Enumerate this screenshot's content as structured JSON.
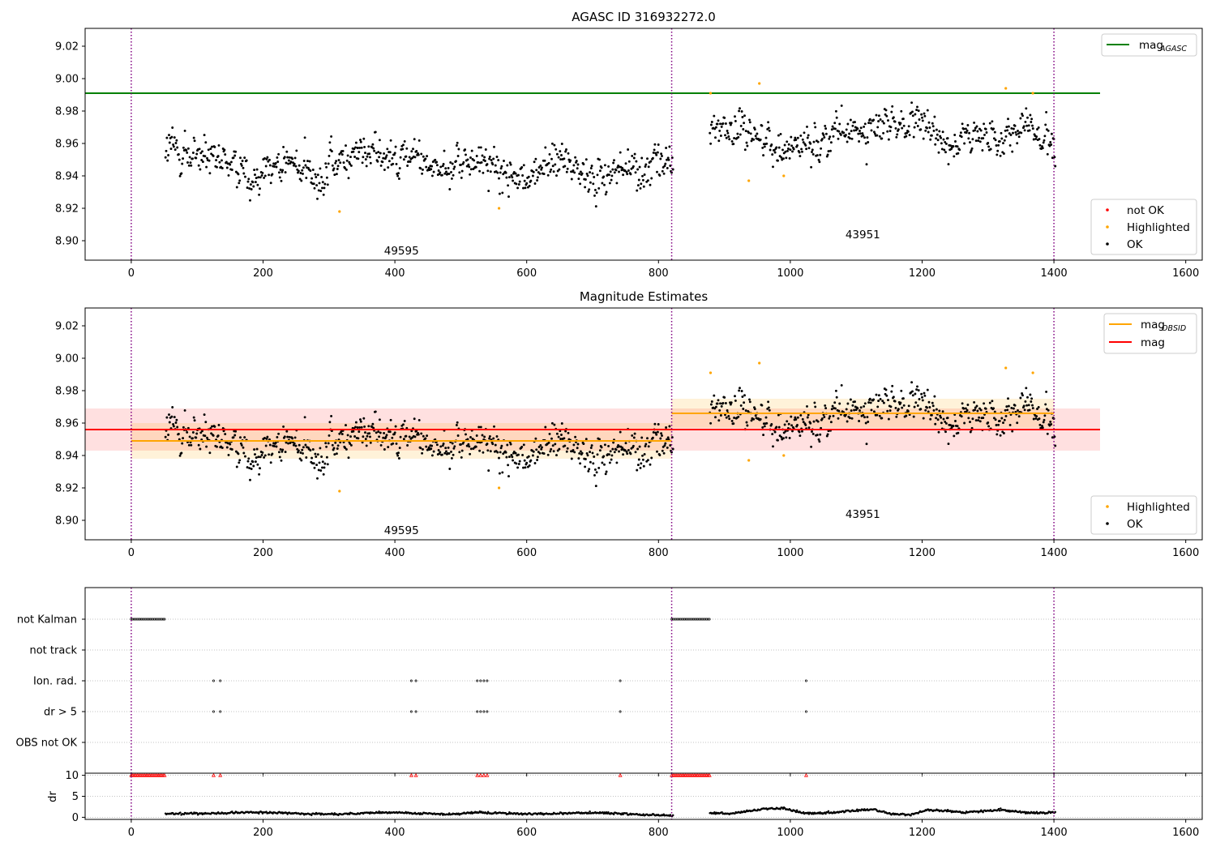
{
  "figure": {
    "background": "#ffffff"
  },
  "chart_data": [
    {
      "type": "scatter",
      "title": "AGASC ID 316932272.0",
      "xlim": [
        -70,
        1625
      ],
      "ylim": [
        8.888,
        9.031
      ],
      "xticks": [
        0,
        200,
        400,
        600,
        800,
        1000,
        1200,
        1400,
        1600
      ],
      "yticks": [
        8.9,
        8.92,
        8.94,
        8.96,
        8.98,
        9.0,
        9.02
      ],
      "grid": false,
      "observation_boundaries": [
        0,
        820,
        1400
      ],
      "observation_labels": [
        {
          "text": "49595",
          "x": 410,
          "y": 8.894
        },
        {
          "text": "43951",
          "x": 1110,
          "y": 8.904
        }
      ],
      "lines": [
        {
          "name": "mag",
          "subscript": "AGASC",
          "y": 8.991,
          "x_range": [
            -70,
            1470
          ],
          "color": "#008000"
        }
      ],
      "series": [
        {
          "name": "not OK",
          "color": "#ff0000",
          "points": []
        },
        {
          "name": "Highlighted",
          "color": "#ffa500",
          "points": [
            [
              316,
              8.918
            ],
            [
              558,
              8.92
            ],
            [
              879,
              8.991
            ],
            [
              937,
              8.937
            ],
            [
              953,
              8.997
            ],
            [
              990,
              8.94
            ],
            [
              1327,
              8.994
            ],
            [
              1368,
              8.991
            ]
          ]
        },
        {
          "name": "OK",
          "color": "#000000",
          "segments": [
            {
              "x_range": [
                52,
                822
              ],
              "means": [
                8.956,
                8.951,
                8.942,
                8.948,
                8.941,
                8.955,
                8.953,
                8.944,
                8.951,
                8.936,
                8.95,
                8.94,
                8.945,
                8.946
              ],
              "spread": 0.0095
            },
            {
              "x_range": [
                878,
                1402
              ],
              "means": [
                8.972,
                8.968,
                8.958,
                8.962,
                8.966,
                8.97,
                8.972,
                8.96,
                8.964,
                8.97,
                8.962
              ],
              "spread": 0.0085
            }
          ]
        }
      ],
      "legend": [
        {
          "position": "top-right",
          "entries": [
            {
              "label": "mag",
              "subscript": "AGASC",
              "marker": "line",
              "color": "#008000"
            }
          ]
        },
        {
          "position": "bottom-right",
          "entries": [
            {
              "label": "not OK",
              "marker": "dot",
              "color": "#ff0000"
            },
            {
              "label": "Highlighted",
              "marker": "dot",
              "color": "#ffa500"
            },
            {
              "label": "OK",
              "marker": "dot",
              "color": "#000000"
            }
          ]
        }
      ]
    },
    {
      "type": "scatter",
      "title": "Magnitude Estimates",
      "xlim": [
        -70,
        1625
      ],
      "ylim": [
        8.888,
        9.031
      ],
      "xticks": [
        0,
        200,
        400,
        600,
        800,
        1000,
        1200,
        1400,
        1600
      ],
      "yticks": [
        8.9,
        8.92,
        8.94,
        8.96,
        8.98,
        9.0,
        9.02
      ],
      "grid": false,
      "observation_boundaries": [
        0,
        820,
        1400
      ],
      "observation_labels": [
        {
          "text": "49595",
          "x": 410,
          "y": 8.894
        },
        {
          "text": "43951",
          "x": 1110,
          "y": 8.904
        }
      ],
      "bands": [
        {
          "x_range": [
            -70,
            1470
          ],
          "y_range": [
            8.943,
            8.969
          ],
          "color": "#ff0000",
          "opacity": 0.12
        },
        {
          "x_range": [
            0,
            820
          ],
          "y_range": [
            8.938,
            8.96
          ],
          "color": "#ffa500",
          "opacity": 0.15
        },
        {
          "x_range": [
            820,
            1400
          ],
          "y_range": [
            8.957,
            8.975
          ],
          "color": "#ffa500",
          "opacity": 0.15
        }
      ],
      "lines": [
        {
          "name": "mag",
          "subscript": "OBSID",
          "color": "#ffa500",
          "pieces": [
            {
              "x_range": [
                0,
                820
              ],
              "y": 8.949
            },
            {
              "x_range": [
                820,
                1400
              ],
              "y": 8.966
            }
          ]
        },
        {
          "name": "mag",
          "subscript": "",
          "color": "#ff0000",
          "pieces": [
            {
              "x_range": [
                -70,
                1470
              ],
              "y": 8.956
            }
          ]
        }
      ],
      "series": [
        {
          "name": "Highlighted",
          "color": "#ffa500",
          "points": [
            [
              316,
              8.918
            ],
            [
              558,
              8.92
            ],
            [
              879,
              8.991
            ],
            [
              937,
              8.937
            ],
            [
              953,
              8.997
            ],
            [
              990,
              8.94
            ],
            [
              1327,
              8.994
            ],
            [
              1368,
              8.991
            ]
          ]
        },
        {
          "name": "OK",
          "color": "#000000",
          "same_as_panel": 0
        }
      ],
      "legend": [
        {
          "position": "top-right",
          "entries": [
            {
              "label": "mag",
              "subscript": "OBSID",
              "marker": "line",
              "color": "#ffa500"
            },
            {
              "label": "mag",
              "subscript": "",
              "marker": "line",
              "color": "#ff0000"
            }
          ]
        },
        {
          "position": "bottom-right",
          "entries": [
            {
              "label": "Highlighted",
              "marker": "dot",
              "color": "#ffa500"
            },
            {
              "label": "OK",
              "marker": "dot",
              "color": "#000000"
            }
          ]
        }
      ]
    },
    {
      "type": "scatter",
      "xlim": [
        -70,
        1625
      ],
      "categories": [
        "not Kalman",
        "not track",
        "Ion. rad.",
        "dr > 5",
        "OBS not OK"
      ],
      "grid": "dotted-horizontal",
      "observation_boundaries": [
        0,
        820,
        1400
      ],
      "flags": {
        "not Kalman": {
          "ranges": [
            [
              0,
              52
            ],
            [
              820,
              878
            ]
          ]
        },
        "not track": {
          "ranges": []
        },
        "Ion. rad.": {
          "points": [
            125,
            135,
            425,
            432,
            525,
            530,
            535,
            540,
            742,
            1024
          ]
        },
        "dr > 5": {
          "points": [
            125,
            135,
            425,
            432,
            525,
            530,
            535,
            540,
            742,
            1024
          ]
        },
        "OBS not OK": {
          "ranges": []
        }
      }
    },
    {
      "type": "scatter",
      "ylabel": "dr",
      "xlim": [
        -70,
        1625
      ],
      "ylim": [
        -0.5,
        10.5
      ],
      "xticks": [
        0,
        200,
        400,
        600,
        800,
        1000,
        1200,
        1400,
        1600
      ],
      "yticks": [
        0,
        5,
        10
      ],
      "grid": "dotted-horizontal",
      "observation_boundaries": [
        0,
        820,
        1400
      ],
      "clipped_points": {
        "y": 10,
        "color": "#ff0000",
        "marker": "triangle",
        "ranges": [
          [
            0,
            52
          ],
          [
            820,
            878
          ]
        ],
        "points": [
          125,
          135,
          425,
          432,
          525,
          530,
          535,
          540,
          742,
          1024
        ]
      },
      "series": [
        {
          "name": "dr",
          "color": "#000000",
          "segments": [
            {
              "x_range": [
                52,
                822
              ],
              "means": [
                0.8,
                0.9,
                1.0,
                1.2,
                1.1,
                0.8,
                0.7,
                1.0,
                1.2,
                0.9,
                0.7,
                1.1,
                1.0,
                0.8,
                0.9,
                1.1,
                0.9,
                0.6,
                0.4
              ]
            },
            {
              "x_range": [
                878,
                1402
              ],
              "means": [
                1.0,
                0.8,
                1.4,
                2.0,
                2.2,
                1.1,
                0.9,
                1.2,
                1.6,
                1.9,
                0.8,
                0.6,
                1.7,
                1.5,
                1.2,
                1.4,
                1.8,
                1.3,
                1.0,
                1.2
              ]
            }
          ]
        }
      ]
    }
  ]
}
